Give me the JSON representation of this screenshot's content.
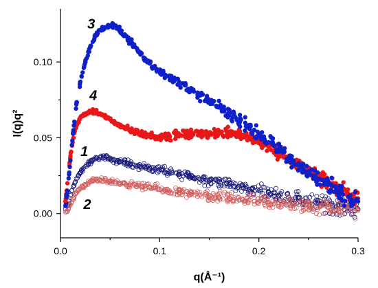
{
  "chart_data": {
    "type": "scatter",
    "xlabel": "q(Å⁻¹)",
    "ylabel": "I(q)q²",
    "xlim": [
      0.0,
      0.3
    ],
    "ylim": [
      -0.016,
      0.135
    ],
    "x_ticks": [
      0.0,
      0.1,
      0.2,
      0.3
    ],
    "x_tick_labels": [
      "0.0",
      "0.1",
      "0.2",
      "0.3"
    ],
    "y_ticks": [
      0.0,
      0.05,
      0.1
    ],
    "y_tick_labels": [
      "0.00",
      "0.05",
      "0.10"
    ],
    "grid": false,
    "legend": "none",
    "series": [
      {
        "label": "1",
        "color": "#1a1a7a",
        "marker": "open-circle",
        "label_at": [
          0.024,
          0.038
        ],
        "points": [
          [
            0.005,
            0.003
          ],
          [
            0.008,
            0.006
          ],
          [
            0.01,
            0.012
          ],
          [
            0.013,
            0.018
          ],
          [
            0.016,
            0.023
          ],
          [
            0.02,
            0.027
          ],
          [
            0.025,
            0.031
          ],
          [
            0.03,
            0.034
          ],
          [
            0.035,
            0.036
          ],
          [
            0.04,
            0.037
          ],
          [
            0.045,
            0.037
          ],
          [
            0.05,
            0.036
          ],
          [
            0.055,
            0.035
          ],
          [
            0.06,
            0.034
          ],
          [
            0.065,
            0.034
          ],
          [
            0.07,
            0.033
          ],
          [
            0.075,
            0.032
          ],
          [
            0.08,
            0.031
          ],
          [
            0.085,
            0.031
          ],
          [
            0.09,
            0.03
          ],
          [
            0.095,
            0.029
          ],
          [
            0.1,
            0.029
          ],
          [
            0.11,
            0.027
          ],
          [
            0.12,
            0.026
          ],
          [
            0.13,
            0.025
          ],
          [
            0.14,
            0.023
          ],
          [
            0.15,
            0.022
          ],
          [
            0.16,
            0.021
          ],
          [
            0.17,
            0.019
          ],
          [
            0.18,
            0.018
          ],
          [
            0.19,
            0.016
          ],
          [
            0.2,
            0.015
          ],
          [
            0.21,
            0.014
          ],
          [
            0.22,
            0.012
          ],
          [
            0.23,
            0.011
          ],
          [
            0.24,
            0.01
          ],
          [
            0.25,
            0.008
          ],
          [
            0.26,
            0.007
          ],
          [
            0.27,
            0.006
          ],
          [
            0.28,
            0.005
          ],
          [
            0.29,
            0.004
          ],
          [
            0.3,
            0.003
          ]
        ]
      },
      {
        "label": "2",
        "color": "#d06060",
        "marker": "open-circle",
        "label_at": [
          0.027,
          0.003
        ],
        "points": [
          [
            0.005,
            0.001
          ],
          [
            0.008,
            0.003
          ],
          [
            0.01,
            0.006
          ],
          [
            0.013,
            0.01
          ],
          [
            0.016,
            0.014
          ],
          [
            0.02,
            0.017
          ],
          [
            0.025,
            0.019
          ],
          [
            0.03,
            0.021
          ],
          [
            0.035,
            0.022
          ],
          [
            0.04,
            0.022
          ],
          [
            0.045,
            0.022
          ],
          [
            0.05,
            0.021
          ],
          [
            0.055,
            0.021
          ],
          [
            0.06,
            0.02
          ],
          [
            0.065,
            0.02
          ],
          [
            0.07,
            0.019
          ],
          [
            0.075,
            0.019
          ],
          [
            0.08,
            0.018
          ],
          [
            0.085,
            0.018
          ],
          [
            0.09,
            0.017
          ],
          [
            0.095,
            0.017
          ],
          [
            0.1,
            0.016
          ],
          [
            0.11,
            0.015
          ],
          [
            0.12,
            0.014
          ],
          [
            0.13,
            0.013
          ],
          [
            0.14,
            0.012
          ],
          [
            0.15,
            0.011
          ],
          [
            0.16,
            0.011
          ],
          [
            0.17,
            0.01
          ],
          [
            0.18,
            0.009
          ],
          [
            0.19,
            0.009
          ],
          [
            0.2,
            0.008
          ],
          [
            0.21,
            0.007
          ],
          [
            0.22,
            0.007
          ],
          [
            0.23,
            0.006
          ],
          [
            0.24,
            0.006
          ],
          [
            0.25,
            0.005
          ],
          [
            0.26,
            0.004
          ],
          [
            0.27,
            0.004
          ],
          [
            0.28,
            0.003
          ],
          [
            0.29,
            0.003
          ],
          [
            0.3,
            0.002
          ]
        ]
      },
      {
        "label": "3",
        "color": "#1020c8",
        "marker": "filled-circle",
        "label_at": [
          0.031,
          0.122
        ],
        "points": [
          [
            0.005,
            0.005
          ],
          [
            0.007,
            0.015
          ],
          [
            0.01,
            0.035
          ],
          [
            0.013,
            0.055
          ],
          [
            0.016,
            0.072
          ],
          [
            0.02,
            0.087
          ],
          [
            0.025,
            0.1
          ],
          [
            0.03,
            0.11
          ],
          [
            0.035,
            0.117
          ],
          [
            0.04,
            0.121
          ],
          [
            0.045,
            0.123
          ],
          [
            0.05,
            0.124
          ],
          [
            0.055,
            0.123
          ],
          [
            0.06,
            0.121
          ],
          [
            0.065,
            0.118
          ],
          [
            0.07,
            0.114
          ],
          [
            0.075,
            0.11
          ],
          [
            0.08,
            0.106
          ],
          [
            0.085,
            0.102
          ],
          [
            0.09,
            0.099
          ],
          [
            0.095,
            0.096
          ],
          [
            0.1,
            0.094
          ],
          [
            0.11,
            0.09
          ],
          [
            0.12,
            0.086
          ],
          [
            0.13,
            0.082
          ],
          [
            0.14,
            0.078
          ],
          [
            0.15,
            0.074
          ],
          [
            0.16,
            0.07
          ],
          [
            0.17,
            0.066
          ],
          [
            0.18,
            0.062
          ],
          [
            0.19,
            0.057
          ],
          [
            0.2,
            0.052
          ],
          [
            0.21,
            0.047
          ],
          [
            0.22,
            0.042
          ],
          [
            0.23,
            0.037
          ],
          [
            0.24,
            0.032
          ],
          [
            0.25,
            0.027
          ],
          [
            0.26,
            0.023
          ],
          [
            0.27,
            0.019
          ],
          [
            0.28,
            0.015
          ],
          [
            0.29,
            0.011
          ],
          [
            0.3,
            0.008
          ]
        ]
      },
      {
        "label": "4",
        "color": "#e81818",
        "marker": "filled-circle",
        "label_at": [
          0.033,
          0.075
        ],
        "points": [
          [
            0.005,
            0.008
          ],
          [
            0.007,
            0.02
          ],
          [
            0.01,
            0.038
          ],
          [
            0.013,
            0.05
          ],
          [
            0.016,
            0.058
          ],
          [
            0.02,
            0.063
          ],
          [
            0.025,
            0.066
          ],
          [
            0.03,
            0.067
          ],
          [
            0.035,
            0.067
          ],
          [
            0.04,
            0.066
          ],
          [
            0.045,
            0.064
          ],
          [
            0.05,
            0.062
          ],
          [
            0.055,
            0.06
          ],
          [
            0.06,
            0.058
          ],
          [
            0.065,
            0.056
          ],
          [
            0.07,
            0.055
          ],
          [
            0.075,
            0.054
          ],
          [
            0.08,
            0.053
          ],
          [
            0.085,
            0.052
          ],
          [
            0.09,
            0.052
          ],
          [
            0.095,
            0.051
          ],
          [
            0.1,
            0.051
          ],
          [
            0.11,
            0.051
          ],
          [
            0.12,
            0.052
          ],
          [
            0.13,
            0.052
          ],
          [
            0.14,
            0.053
          ],
          [
            0.15,
            0.053
          ],
          [
            0.16,
            0.053
          ],
          [
            0.17,
            0.054
          ],
          [
            0.18,
            0.053
          ],
          [
            0.19,
            0.051
          ],
          [
            0.2,
            0.048
          ],
          [
            0.21,
            0.044
          ],
          [
            0.22,
            0.04
          ],
          [
            0.23,
            0.036
          ],
          [
            0.24,
            0.032
          ],
          [
            0.25,
            0.028
          ],
          [
            0.26,
            0.024
          ],
          [
            0.27,
            0.02
          ],
          [
            0.28,
            0.016
          ],
          [
            0.29,
            0.013
          ],
          [
            0.3,
            0.01
          ]
        ]
      }
    ]
  }
}
